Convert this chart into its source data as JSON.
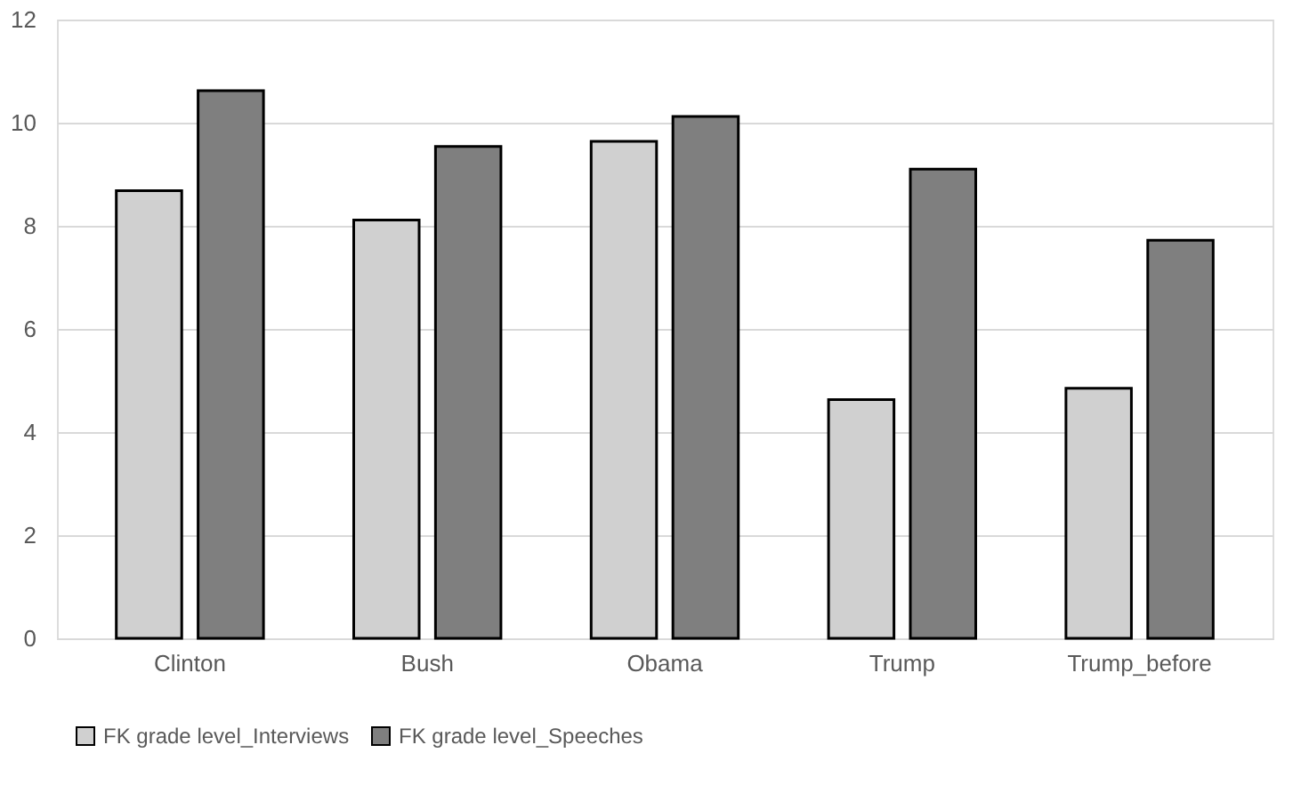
{
  "chart_data": {
    "type": "bar",
    "categories": [
      "Clinton",
      "Bush",
      "Obama",
      "Trump",
      "Trump_before"
    ],
    "series": [
      {
        "name": "FK grade level_Interviews",
        "color": "#d0d0d0",
        "values": [
          8.68,
          8.11,
          9.64,
          4.63,
          4.85
        ]
      },
      {
        "name": "FK grade level_Speeches",
        "color": "#7f7f7f",
        "values": [
          10.62,
          9.54,
          10.12,
          9.1,
          7.72
        ]
      }
    ],
    "ylim": [
      0,
      12
    ],
    "yticks": [
      0,
      2,
      4,
      6,
      8,
      10,
      12
    ],
    "grid": "y",
    "legend": "bottom"
  }
}
